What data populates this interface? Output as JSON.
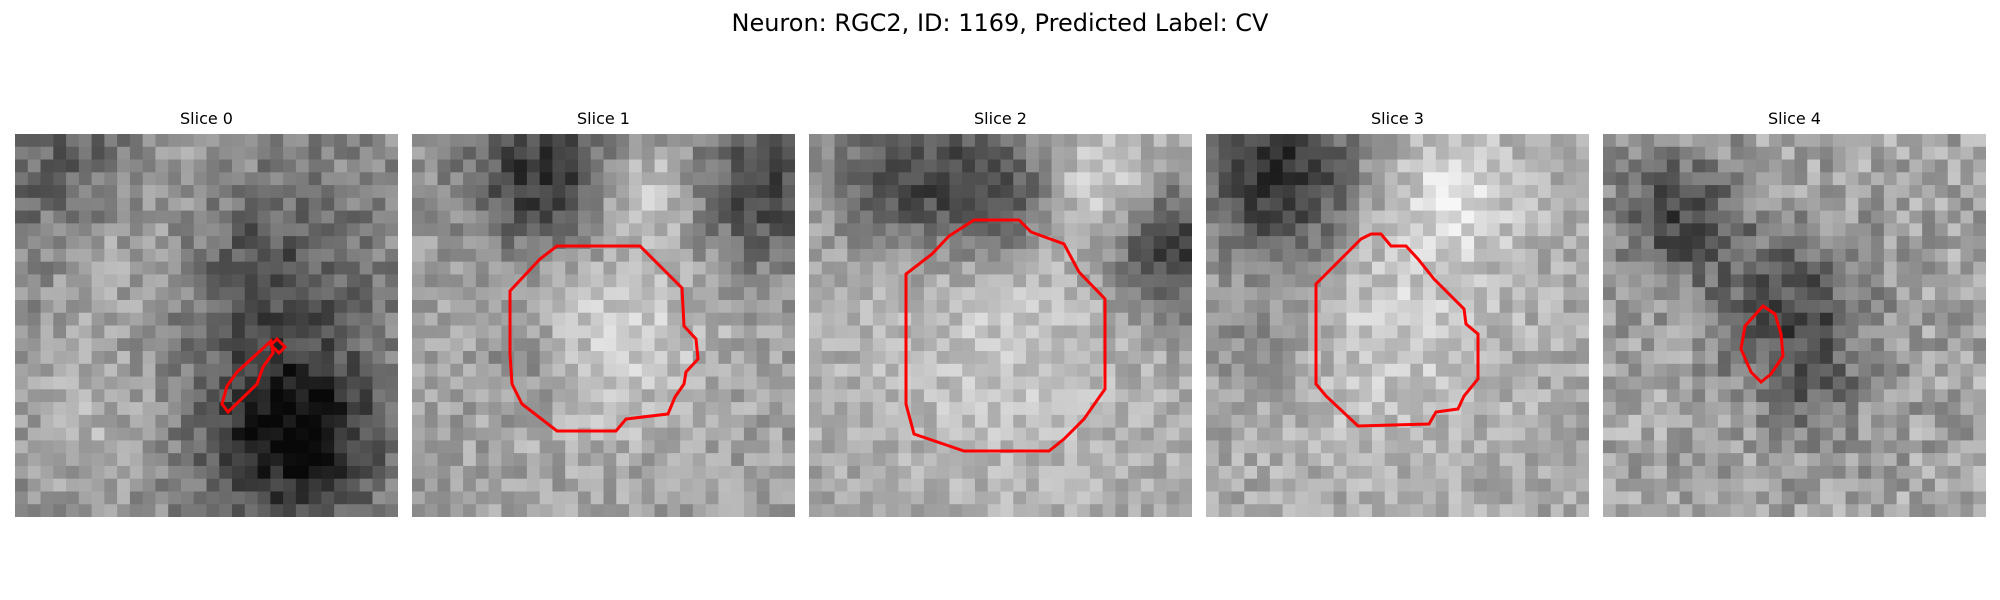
{
  "figure": {
    "title": "Neuron: RGC2, ID: 1169, Predicted Label: CV",
    "contour_color": "#ff0000",
    "colormap": "gray",
    "panels": [
      {
        "title": "Slice 0"
      },
      {
        "title": "Slice 1"
      },
      {
        "title": "Slice 2"
      },
      {
        "title": "Slice 3"
      },
      {
        "title": "Slice 4"
      }
    ]
  }
}
